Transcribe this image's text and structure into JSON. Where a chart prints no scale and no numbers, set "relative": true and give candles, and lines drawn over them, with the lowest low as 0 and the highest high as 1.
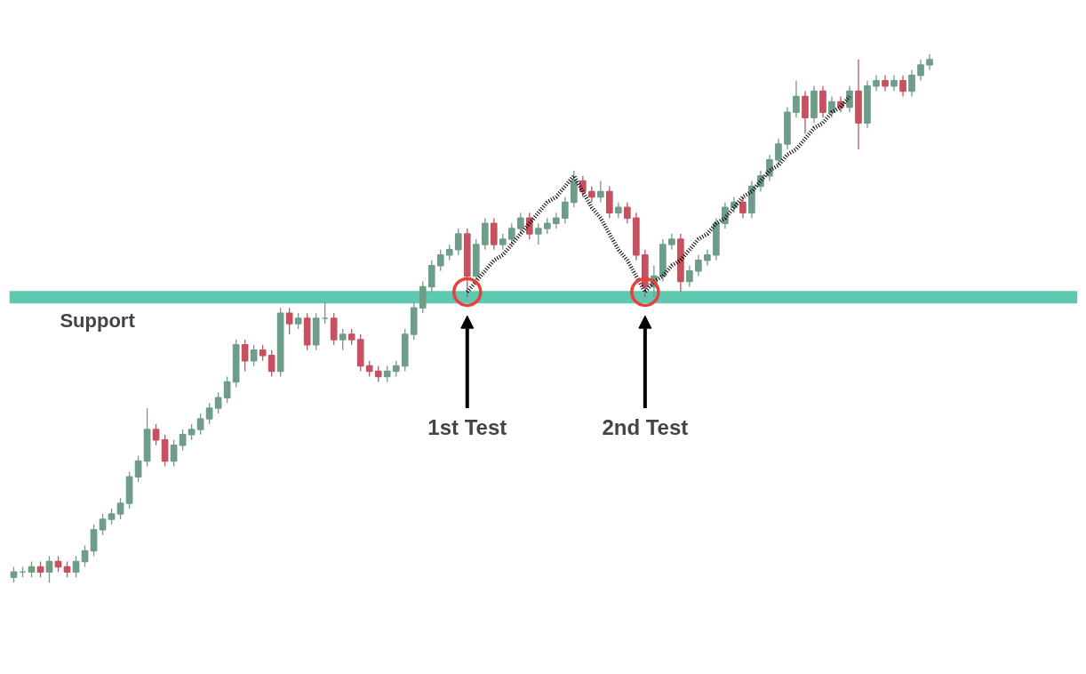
{
  "chart_data": {
    "type": "candlestick",
    "relative": true,
    "categories": [
      null,
      null,
      null,
      null,
      null,
      null,
      null,
      null,
      null,
      null,
      null,
      null,
      null,
      null,
      null,
      null,
      null,
      null,
      null,
      null,
      null,
      null,
      null,
      null,
      null,
      null,
      null,
      null,
      null,
      null,
      null,
      null,
      null,
      null,
      null,
      null,
      null,
      null,
      null,
      null,
      null,
      null,
      null,
      null,
      null,
      null,
      null,
      null,
      null,
      null,
      null,
      null,
      null,
      null,
      null,
      null,
      null,
      null,
      null,
      null,
      null,
      null,
      null,
      null,
      null,
      null,
      null,
      null,
      null,
      null,
      null,
      null,
      null,
      null,
      null,
      null,
      null,
      null,
      null,
      null,
      null,
      null,
      null,
      null,
      null,
      null,
      null,
      null,
      null,
      null,
      null,
      null,
      null,
      null,
      null,
      null,
      null,
      null,
      null,
      null,
      null,
      null,
      null,
      null
    ],
    "ohlc": [
      [
        0.01,
        0.03,
        0.0,
        0.02
      ],
      [
        0.02,
        0.03,
        0.01,
        0.02
      ],
      [
        0.02,
        0.04,
        0.01,
        0.03
      ],
      [
        0.03,
        0.04,
        0.01,
        0.02
      ],
      [
        0.02,
        0.05,
        0.0,
        0.04
      ],
      [
        0.04,
        0.05,
        0.02,
        0.03
      ],
      [
        0.03,
        0.04,
        0.01,
        0.02
      ],
      [
        0.02,
        0.05,
        0.01,
        0.04
      ],
      [
        0.04,
        0.07,
        0.03,
        0.06
      ],
      [
        0.06,
        0.11,
        0.05,
        0.1
      ],
      [
        0.1,
        0.13,
        0.09,
        0.12
      ],
      [
        0.12,
        0.14,
        0.11,
        0.13
      ],
      [
        0.13,
        0.16,
        0.12,
        0.15
      ],
      [
        0.15,
        0.21,
        0.14,
        0.2
      ],
      [
        0.2,
        0.24,
        0.19,
        0.23
      ],
      [
        0.23,
        0.33,
        0.22,
        0.29
      ],
      [
        0.29,
        0.3,
        0.26,
        0.27
      ],
      [
        0.27,
        0.28,
        0.22,
        0.23
      ],
      [
        0.23,
        0.27,
        0.22,
        0.26
      ],
      [
        0.26,
        0.29,
        0.25,
        0.28
      ],
      [
        0.28,
        0.3,
        0.27,
        0.29
      ],
      [
        0.29,
        0.32,
        0.28,
        0.31
      ],
      [
        0.31,
        0.34,
        0.3,
        0.33
      ],
      [
        0.33,
        0.36,
        0.32,
        0.35
      ],
      [
        0.35,
        0.39,
        0.34,
        0.38
      ],
      [
        0.38,
        0.46,
        0.37,
        0.45
      ],
      [
        0.45,
        0.46,
        0.4,
        0.42
      ],
      [
        0.42,
        0.45,
        0.41,
        0.44
      ],
      [
        0.44,
        0.45,
        0.42,
        0.43
      ],
      [
        0.43,
        0.44,
        0.39,
        0.4
      ],
      [
        0.4,
        0.52,
        0.39,
        0.51
      ],
      [
        0.51,
        0.52,
        0.47,
        0.49
      ],
      [
        0.49,
        0.51,
        0.48,
        0.5
      ],
      [
        0.5,
        0.51,
        0.44,
        0.45
      ],
      [
        0.45,
        0.51,
        0.44,
        0.5
      ],
      [
        0.5,
        0.53,
        0.49,
        0.5
      ],
      [
        0.5,
        0.51,
        0.45,
        0.46
      ],
      [
        0.46,
        0.48,
        0.44,
        0.47
      ],
      [
        0.47,
        0.48,
        0.45,
        0.46
      ],
      [
        0.46,
        0.47,
        0.4,
        0.41
      ],
      [
        0.41,
        0.42,
        0.39,
        0.4
      ],
      [
        0.4,
        0.41,
        0.38,
        0.39
      ],
      [
        0.39,
        0.41,
        0.38,
        0.4
      ],
      [
        0.4,
        0.42,
        0.39,
        0.41
      ],
      [
        0.41,
        0.48,
        0.4,
        0.47
      ],
      [
        0.47,
        0.53,
        0.46,
        0.52
      ],
      [
        0.52,
        0.57,
        0.51,
        0.56
      ],
      [
        0.56,
        0.61,
        0.55,
        0.6
      ],
      [
        0.6,
        0.63,
        0.59,
        0.62
      ],
      [
        0.62,
        0.64,
        0.61,
        0.63
      ],
      [
        0.63,
        0.67,
        0.62,
        0.66
      ],
      [
        0.66,
        0.67,
        0.54,
        0.58
      ],
      [
        0.58,
        0.65,
        0.57,
        0.64
      ],
      [
        0.64,
        0.69,
        0.63,
        0.68
      ],
      [
        0.68,
        0.69,
        0.63,
        0.64
      ],
      [
        0.64,
        0.66,
        0.63,
        0.65
      ],
      [
        0.65,
        0.68,
        0.64,
        0.67
      ],
      [
        0.67,
        0.7,
        0.66,
        0.69
      ],
      [
        0.69,
        0.7,
        0.65,
        0.66
      ],
      [
        0.66,
        0.68,
        0.64,
        0.67
      ],
      [
        0.67,
        0.69,
        0.66,
        0.68
      ],
      [
        0.68,
        0.7,
        0.67,
        0.69
      ],
      [
        0.69,
        0.73,
        0.68,
        0.72
      ],
      [
        0.72,
        0.78,
        0.71,
        0.76
      ],
      [
        0.76,
        0.77,
        0.73,
        0.74
      ],
      [
        0.74,
        0.75,
        0.72,
        0.73
      ],
      [
        0.73,
        0.76,
        0.72,
        0.74
      ],
      [
        0.74,
        0.75,
        0.69,
        0.7
      ],
      [
        0.7,
        0.72,
        0.69,
        0.71
      ],
      [
        0.71,
        0.72,
        0.68,
        0.69
      ],
      [
        0.69,
        0.7,
        0.61,
        0.62
      ],
      [
        0.62,
        0.63,
        0.54,
        0.56
      ],
      [
        0.56,
        0.6,
        0.54,
        0.58
      ],
      [
        0.58,
        0.65,
        0.57,
        0.64
      ],
      [
        0.64,
        0.66,
        0.63,
        0.65
      ],
      [
        0.65,
        0.66,
        0.55,
        0.57
      ],
      [
        0.57,
        0.6,
        0.56,
        0.59
      ],
      [
        0.59,
        0.62,
        0.58,
        0.61
      ],
      [
        0.61,
        0.63,
        0.6,
        0.62
      ],
      [
        0.62,
        0.69,
        0.61,
        0.68
      ],
      [
        0.68,
        0.72,
        0.67,
        0.71
      ],
      [
        0.71,
        0.73,
        0.7,
        0.72
      ],
      [
        0.72,
        0.73,
        0.69,
        0.7
      ],
      [
        0.7,
        0.76,
        0.69,
        0.75
      ],
      [
        0.75,
        0.78,
        0.74,
        0.77
      ],
      [
        0.77,
        0.81,
        0.76,
        0.8
      ],
      [
        0.8,
        0.84,
        0.79,
        0.83
      ],
      [
        0.83,
        0.9,
        0.82,
        0.89
      ],
      [
        0.89,
        0.95,
        0.88,
        0.92
      ],
      [
        0.92,
        0.93,
        0.85,
        0.88
      ],
      [
        0.88,
        0.94,
        0.87,
        0.93
      ],
      [
        0.93,
        0.94,
        0.88,
        0.89
      ],
      [
        0.89,
        0.92,
        0.88,
        0.91
      ],
      [
        0.91,
        0.92,
        0.89,
        0.9
      ],
      [
        0.9,
        0.94,
        0.89,
        0.93
      ],
      [
        0.93,
        0.99,
        0.82,
        0.87
      ],
      [
        0.87,
        0.95,
        0.86,
        0.94
      ],
      [
        0.94,
        0.96,
        0.93,
        0.95
      ],
      [
        0.95,
        0.96,
        0.93,
        0.94
      ],
      [
        0.94,
        0.96,
        0.93,
        0.95
      ],
      [
        0.95,
        0.96,
        0.92,
        0.93
      ],
      [
        0.93,
        0.97,
        0.92,
        0.96
      ],
      [
        0.96,
        0.99,
        0.95,
        0.98
      ],
      [
        0.98,
        1.0,
        0.97,
        0.99
      ]
    ],
    "colors": [
      "#6f9d89",
      "#6f9d89",
      "#6f9d89",
      "#c55260",
      "#6f9d89",
      "#c55260",
      "#c55260",
      "#6f9d89",
      "#6f9d89",
      "#6f9d89",
      "#6f9d89",
      "#6f9d89",
      "#6f9d89",
      "#6f9d89",
      "#6f9d89",
      "#6f9d89",
      "#c55260",
      "#c55260",
      "#6f9d89",
      "#6f9d89",
      "#6f9d89",
      "#6f9d89",
      "#6f9d89",
      "#6f9d89",
      "#6f9d89",
      "#6f9d89",
      "#c55260",
      "#6f9d89",
      "#c55260",
      "#c55260",
      "#6f9d89",
      "#c55260",
      "#6f9d89",
      "#c55260",
      "#6f9d89",
      "#6f9d89",
      "#c55260",
      "#6f9d89",
      "#c55260",
      "#c55260",
      "#c55260",
      "#c55260",
      "#6f9d89",
      "#6f9d89",
      "#6f9d89",
      "#6f9d89",
      "#6f9d89",
      "#6f9d89",
      "#6f9d89",
      "#6f9d89",
      "#6f9d89",
      "#c55260",
      "#6f9d89",
      "#6f9d89",
      "#c55260",
      "#6f9d89",
      "#6f9d89",
      "#6f9d89",
      "#c55260",
      "#6f9d89",
      "#6f9d89",
      "#6f9d89",
      "#6f9d89",
      "#6f9d89",
      "#c55260",
      "#c55260",
      "#6f9d89",
      "#c55260",
      "#6f9d89",
      "#c55260",
      "#c55260",
      "#c55260",
      "#6f9d89",
      "#6f9d89",
      "#6f9d89",
      "#c55260",
      "#6f9d89",
      "#6f9d89",
      "#6f9d89",
      "#6f9d89",
      "#6f9d89",
      "#6f9d89",
      "#c55260",
      "#6f9d89",
      "#6f9d89",
      "#6f9d89",
      "#6f9d89",
      "#6f9d89",
      "#6f9d89",
      "#c55260",
      "#6f9d89",
      "#c55260",
      "#6f9d89",
      "#c55260",
      "#6f9d89",
      "#c55260",
      "#6f9d89",
      "#6f9d89",
      "#c55260",
      "#6f9d89",
      "#c55260",
      "#6f9d89",
      "#6f9d89",
      "#6f9d89"
    ],
    "series": [
      {
        "type": "line",
        "color": "#000000",
        "line_style": "dotted",
        "values": [
          null,
          null,
          null,
          null,
          null,
          null,
          null,
          null,
          null,
          null,
          null,
          null,
          null,
          null,
          null,
          null,
          null,
          null,
          null,
          null,
          null,
          null,
          null,
          null,
          null,
          null,
          null,
          null,
          null,
          null,
          null,
          null,
          null,
          null,
          null,
          null,
          null,
          null,
          null,
          null,
          null,
          null,
          null,
          null,
          null,
          null,
          null,
          null,
          null,
          null,
          null,
          0.55,
          0.57,
          0.59,
          0.61,
          0.62,
          0.64,
          0.66,
          0.68,
          0.7,
          0.72,
          0.73,
          0.75,
          0.77,
          0.74,
          0.71,
          0.69,
          0.66,
          0.63,
          0.61,
          0.58,
          0.55,
          0.57,
          0.58,
          0.6,
          0.61,
          0.63,
          0.65,
          0.66,
          0.68,
          0.69,
          0.71,
          0.73,
          0.74,
          0.76,
          0.78,
          0.79,
          0.81,
          0.82,
          0.84,
          0.86,
          0.87,
          0.89,
          0.9,
          0.92,
          null,
          null,
          null,
          null,
          null,
          null,
          null,
          null,
          null
        ]
      },
      {
        "type": "scatter",
        "color": "#e8403a",
        "marker": "circle",
        "values": [
          null,
          null,
          null,
          null,
          null,
          null,
          null,
          null,
          null,
          null,
          null,
          null,
          null,
          null,
          null,
          null,
          null,
          null,
          null,
          null,
          null,
          null,
          null,
          null,
          null,
          null,
          null,
          null,
          null,
          null,
          null,
          null,
          null,
          null,
          null,
          null,
          null,
          null,
          null,
          null,
          null,
          null,
          null,
          null,
          null,
          null,
          null,
          null,
          null,
          null,
          null,
          0.55,
          null,
          null,
          null,
          null,
          null,
          null,
          null,
          null,
          null,
          null,
          null,
          null,
          null,
          null,
          null,
          null,
          null,
          null,
          null,
          0.55,
          null,
          null,
          null,
          null,
          null,
          null,
          null,
          null,
          null,
          null,
          null,
          null,
          null,
          null,
          null,
          null,
          null,
          null,
          null,
          null,
          null,
          null,
          null,
          null,
          null,
          null,
          null,
          null,
          null,
          null,
          null,
          null
        ]
      }
    ],
    "ref_lines": [
      {
        "axis": "y",
        "value": 0.54,
        "label": "Support",
        "color": "#5ec8b0"
      }
    ],
    "annotations": [
      "1st Test",
      "2nd Test"
    ]
  }
}
